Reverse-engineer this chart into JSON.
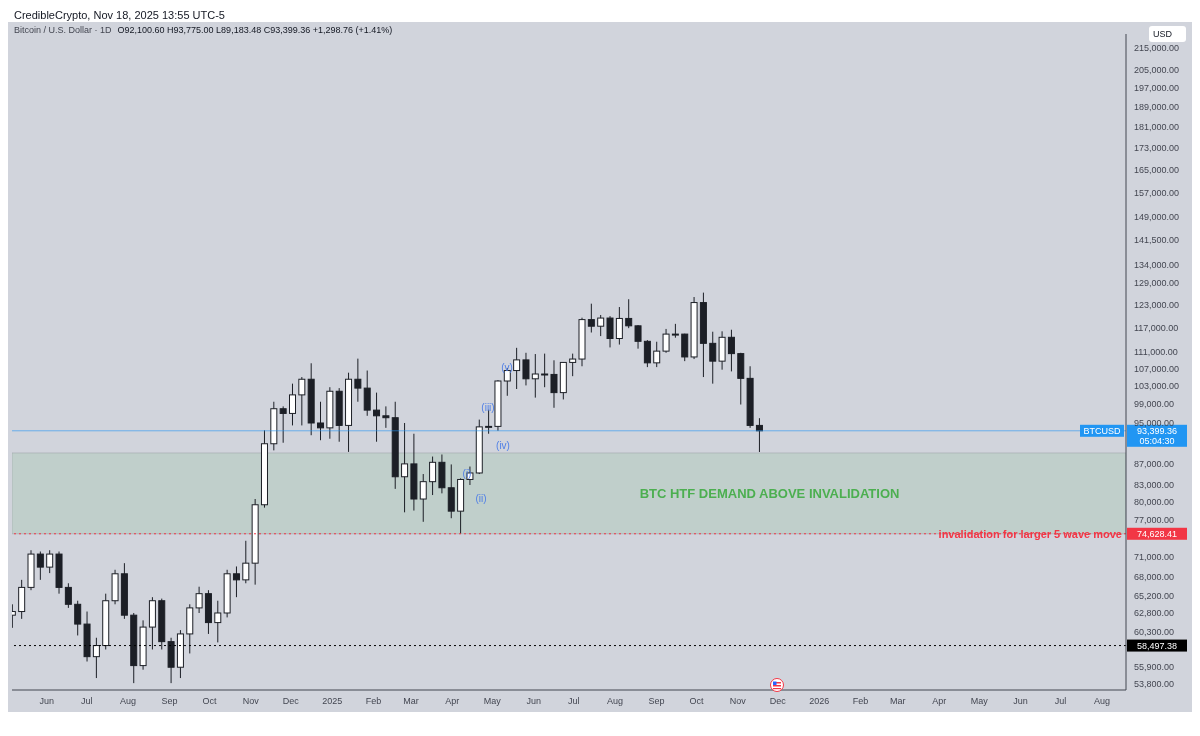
{
  "chart_data": {
    "type": "candlestick",
    "title": "Bitcoin / U.S. Dollar · 1D",
    "subtitle": "O92,100.60 H93,775.00 L89,183.48 C93,399.36 +1,298.76 (+1.41%)",
    "ylabel": "USD",
    "color": "#1c1f26",
    "log": "y",
    "x": [
      "2024-05-06",
      "2024-05-13",
      "2024-05-20",
      "2024-05-27",
      "2024-06-03",
      "2024-06-10",
      "2024-06-17",
      "2024-06-24",
      "2024-07-01",
      "2024-07-08",
      "2024-07-15",
      "2024-07-22",
      "2024-07-29",
      "2024-08-05",
      "2024-08-12",
      "2024-08-19",
      "2024-08-26",
      "2024-09-02",
      "2024-09-09",
      "2024-09-16",
      "2024-09-23",
      "2024-09-30",
      "2024-10-07",
      "2024-10-14",
      "2024-10-21",
      "2024-10-28",
      "2024-11-04",
      "2024-11-11",
      "2024-11-18",
      "2024-11-25",
      "2024-12-02",
      "2024-12-09",
      "2024-12-16",
      "2024-12-23",
      "2024-12-30",
      "2025-01-06",
      "2025-01-13",
      "2025-01-20",
      "2025-01-27",
      "2025-02-03",
      "2025-02-10",
      "2025-02-17",
      "2025-02-24",
      "2025-03-03",
      "2025-03-10",
      "2025-03-17",
      "2025-03-24",
      "2025-03-31",
      "2025-04-07",
      "2025-04-14",
      "2025-04-21",
      "2025-04-28",
      "2025-05-05",
      "2025-05-12",
      "2025-05-19",
      "2025-05-26",
      "2025-06-02",
      "2025-06-09",
      "2025-06-16",
      "2025-06-23",
      "2025-06-30",
      "2025-07-07",
      "2025-07-14",
      "2025-07-21",
      "2025-07-28",
      "2025-08-04",
      "2025-08-11",
      "2025-08-18",
      "2025-08-25",
      "2025-09-01",
      "2025-09-08",
      "2025-09-15",
      "2025-09-22",
      "2025-09-29",
      "2025-10-06",
      "2025-10-13",
      "2025-10-20",
      "2025-10-27",
      "2025-11-03",
      "2025-11-10",
      "2025-11-17"
    ],
    "ohlc": [
      [
        62500,
        64000,
        60800,
        63000
      ],
      [
        63000,
        67500,
        62000,
        66400
      ],
      [
        66400,
        72000,
        66000,
        71400
      ],
      [
        71400,
        71800,
        67500,
        69400
      ],
      [
        69400,
        72000,
        68500,
        71400
      ],
      [
        71400,
        71800,
        65500,
        66400
      ],
      [
        66400,
        67000,
        63500,
        64000
      ],
      [
        64000,
        64500,
        59800,
        61300
      ],
      [
        61300,
        63000,
        56500,
        57100
      ],
      [
        57100,
        59500,
        54500,
        58500
      ],
      [
        58500,
        65500,
        58000,
        64500
      ],
      [
        64500,
        69000,
        64000,
        68400
      ],
      [
        68400,
        70000,
        62000,
        62500
      ],
      [
        62500,
        62800,
        53900,
        56000
      ],
      [
        56000,
        61800,
        55500,
        60900
      ],
      [
        60900,
        65000,
        58000,
        64500
      ],
      [
        64500,
        64800,
        58000,
        59000
      ],
      [
        59000,
        59500,
        53900,
        55800
      ],
      [
        55800,
        60500,
        54500,
        60000
      ],
      [
        60000,
        64000,
        57500,
        63500
      ],
      [
        63500,
        66500,
        62800,
        65500
      ],
      [
        65500,
        66000,
        60000,
        61500
      ],
      [
        61500,
        64500,
        58900,
        62800
      ],
      [
        62800,
        69000,
        62200,
        68400
      ],
      [
        68400,
        69500,
        65000,
        67500
      ],
      [
        67500,
        73500,
        67000,
        70000
      ],
      [
        70000,
        80500,
        66800,
        79500
      ],
      [
        79500,
        93500,
        79000,
        90800
      ],
      [
        90800,
        99500,
        89500,
        98000
      ],
      [
        98000,
        98500,
        91000,
        97000
      ],
      [
        97000,
        103500,
        94500,
        101000
      ],
      [
        101000,
        105000,
        94500,
        104500
      ],
      [
        104500,
        108200,
        92500,
        95000
      ],
      [
        95000,
        99500,
        91500,
        94000
      ],
      [
        94000,
        102700,
        91800,
        101800
      ],
      [
        101800,
        102500,
        91200,
        94500
      ],
      [
        94500,
        106000,
        89200,
        104500
      ],
      [
        104500,
        109300,
        99500,
        102500
      ],
      [
        102500,
        106500,
        96500,
        97700
      ],
      [
        97700,
        101500,
        91200,
        96500
      ],
      [
        96500,
        98500,
        94000,
        96100
      ],
      [
        96100,
        99500,
        82300,
        84500
      ],
      [
        84500,
        95000,
        78200,
        86900
      ],
      [
        86900,
        92800,
        78500,
        80500
      ],
      [
        80500,
        85000,
        76600,
        83600
      ],
      [
        83600,
        88300,
        81200,
        87200
      ],
      [
        87200,
        88700,
        81500,
        82500
      ],
      [
        82500,
        86800,
        77200,
        78400
      ],
      [
        78400,
        84200,
        74628,
        84000
      ],
      [
        84000,
        86400,
        83000,
        85200
      ],
      [
        85200,
        95700,
        85000,
        94200
      ],
      [
        94200,
        97800,
        92800,
        94300
      ],
      [
        94300,
        104300,
        93400,
        104100
      ],
      [
        104100,
        107100,
        100800,
        106500
      ],
      [
        106500,
        111900,
        102300,
        109000
      ],
      [
        109000,
        110700,
        103100,
        104600
      ],
      [
        104600,
        110400,
        100400,
        105700
      ],
      [
        105700,
        110500,
        102700,
        105600
      ],
      [
        105600,
        108900,
        98200,
        101500
      ],
      [
        101500,
        108500,
        100000,
        108400
      ],
      [
        108400,
        110500,
        105200,
        109200
      ],
      [
        109200,
        119500,
        107500,
        119000
      ],
      [
        119000,
        123200,
        115700,
        117300
      ],
      [
        117300,
        120200,
        114800,
        119400
      ],
      [
        119400,
        119900,
        112000,
        114200
      ],
      [
        114200,
        122300,
        112700,
        119300
      ],
      [
        119300,
        124400,
        116800,
        117400
      ],
      [
        117400,
        117600,
        111700,
        113500
      ],
      [
        113500,
        113800,
        107300,
        108300
      ],
      [
        108300,
        113400,
        107300,
        111100
      ],
      [
        111100,
        116600,
        110700,
        115300
      ],
      [
        115300,
        117900,
        114400,
        115300
      ],
      [
        115300,
        115400,
        108700,
        109700
      ],
      [
        109700,
        125000,
        109200,
        123500
      ],
      [
        123500,
        126200,
        105000,
        113000
      ],
      [
        113000,
        115900,
        103500,
        108700
      ],
      [
        108700,
        116000,
        106700,
        114500
      ],
      [
        114500,
        116400,
        106300,
        110500
      ],
      [
        110500,
        110700,
        98900,
        104700
      ],
      [
        104700,
        107500,
        94000,
        94500
      ],
      [
        94500,
        96000,
        89183.48,
        93399.36
      ]
    ],
    "xlim": [
      "2024-05-06",
      "2026-08-19"
    ],
    "xticks": [
      {
        "value": "2024-06-01",
        "label": "Jun"
      },
      {
        "value": "2024-07-01",
        "label": "Jul"
      },
      {
        "value": "2024-08-01",
        "label": "Aug"
      },
      {
        "value": "2024-09-01",
        "label": "Sep"
      },
      {
        "value": "2024-10-01",
        "label": "Oct"
      },
      {
        "value": "2024-11-01",
        "label": "Nov"
      },
      {
        "value": "2024-12-01",
        "label": "Dec"
      },
      {
        "value": "2025-01-01",
        "label": "2025"
      },
      {
        "value": "2025-02-01",
        "label": "Feb"
      },
      {
        "value": "2025-03-01",
        "label": "Mar"
      },
      {
        "value": "2025-04-01",
        "label": "Apr"
      },
      {
        "value": "2025-05-01",
        "label": "May"
      },
      {
        "value": "2025-06-01",
        "label": "Jun"
      },
      {
        "value": "2025-07-01",
        "label": "Jul"
      },
      {
        "value": "2025-08-01",
        "label": "Aug"
      },
      {
        "value": "2025-09-01",
        "label": "Sep"
      },
      {
        "value": "2025-10-01",
        "label": "Oct"
      },
      {
        "value": "2025-11-01",
        "label": "Nov"
      },
      {
        "value": "2025-12-01",
        "label": "Dec"
      },
      {
        "value": "2026-01-01",
        "label": "2026"
      },
      {
        "value": "2026-02-01",
        "label": "Feb"
      },
      {
        "value": "2026-03-01",
        "label": "Mar"
      },
      {
        "value": "2026-04-01",
        "label": "Apr"
      },
      {
        "value": "2026-05-01",
        "label": "May"
      },
      {
        "value": "2026-06-01",
        "label": "Jun"
      },
      {
        "value": "2026-07-01",
        "label": "Jul"
      },
      {
        "value": "2026-08-01",
        "label": "Aug"
      }
    ],
    "ylim": [
      53100,
      221700
    ],
    "yticks": [
      {
        "value": 53800,
        "label": "53,800.00"
      },
      {
        "value": 55900,
        "label": "55,900.00"
      },
      {
        "value": 60300,
        "label": "60,300.00"
      },
      {
        "value": 62800,
        "label": "62,800.00"
      },
      {
        "value": 65200,
        "label": "65,200.00"
      },
      {
        "value": 68000,
        "label": "68,000.00"
      },
      {
        "value": 71000,
        "label": "71,000.00"
      },
      {
        "value": 77000,
        "label": "77,000.00"
      },
      {
        "value": 80000,
        "label": "80,000.00"
      },
      {
        "value": 83000,
        "label": "83,000.00"
      },
      {
        "value": 87000,
        "label": "87,000.00"
      },
      {
        "value": 95000,
        "label": "95,000.00"
      },
      {
        "value": 99000,
        "label": "99,000.00"
      },
      {
        "value": 103000,
        "label": "103,000.00"
      },
      {
        "value": 107000,
        "label": "107,000.00"
      },
      {
        "value": 111000,
        "label": "111,000.00"
      },
      {
        "value": 117000,
        "label": "117,000.00"
      },
      {
        "value": 123000,
        "label": "123,000.00"
      },
      {
        "value": 129000,
        "label": "129,000.00"
      },
      {
        "value": 134000,
        "label": "134,000.00"
      },
      {
        "value": 141500,
        "label": "141,500.00"
      },
      {
        "value": 149000,
        "label": "149,000.00"
      },
      {
        "value": 157000,
        "label": "157,000.00"
      },
      {
        "value": 165000,
        "label": "165,000.00"
      },
      {
        "value": 173000,
        "label": "173,000.00"
      },
      {
        "value": 181000,
        "label": "181,000.00"
      },
      {
        "value": 189000,
        "label": "189,000.00"
      },
      {
        "value": 197000,
        "label": "197,000.00"
      },
      {
        "value": 205000,
        "label": "205,000.00"
      },
      {
        "value": 215000,
        "label": "215,000.00"
      }
    ],
    "ref_lines": [
      {
        "axis": "y",
        "value": 93399.36,
        "label": "BTCUSD",
        "color": "#2196f3",
        "line_style": "solid"
      },
      {
        "axis": "y",
        "value": 74628.41,
        "label": "invalidation for larger 5 wave move",
        "color": "#f23645",
        "line_style": "dotted"
      },
      {
        "axis": "y",
        "value": 58497.38,
        "color": "#000000",
        "line_style": "dotted"
      }
    ],
    "bands": [
      {
        "axis": "y",
        "from": 74628.41,
        "to": 89000,
        "label": "BTC HTF DEMAND ABOVE INVALIDATION",
        "color": "#4caf50"
      }
    ],
    "annotations": [
      "CredibleCrypto, Nov 18, 2025 13:55 UTC-5",
      "93,399.36",
      "05:04:30",
      "74,628.41",
      "58,497.38",
      "(i)",
      "(ii)",
      "(iii)",
      "(iv)",
      "(v)"
    ]
  }
}
